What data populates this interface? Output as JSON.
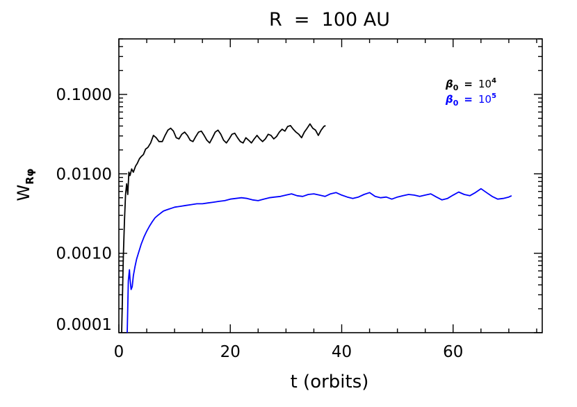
{
  "chart_data": {
    "type": "line",
    "title": "R  =  100 AU",
    "xlabel": "t (orbits)",
    "ylabel": "W",
    "ylabel_sub": "Rφ",
    "xlim": [
      0,
      76
    ],
    "ylim": [
      0.0001,
      0.5
    ],
    "yscale": "log",
    "xticks": [
      0,
      20,
      40,
      60
    ],
    "xtick_labels": [
      "0",
      "20",
      "40",
      "60"
    ],
    "yticks": [
      0.0001,
      0.001,
      0.01,
      0.1
    ],
    "ytick_labels": [
      "0.0001",
      "0.0010",
      "0.0100",
      "0.1000"
    ],
    "legend_position": "top-right",
    "series": [
      {
        "name": "β₀ = 10⁴",
        "legend_base": "β",
        "legend_sub": "0",
        "legend_eq": "=",
        "legend_val": "10",
        "legend_exp": "4",
        "color": "#000000",
        "x": [
          0.5,
          0.8,
          1.0,
          1.2,
          1.4,
          1.6,
          1.8,
          2.0,
          2.3,
          2.6,
          3.0,
          3.3,
          3.7,
          4.0,
          4.4,
          4.8,
          5.2,
          5.7,
          6.2,
          6.7,
          7.2,
          7.8,
          8.3,
          8.8,
          9.3,
          9.8,
          10.3,
          10.8,
          11.3,
          11.8,
          12.3,
          12.8,
          13.3,
          13.8,
          14.3,
          14.8,
          15.3,
          15.8,
          16.3,
          16.8,
          17.3,
          17.8,
          18.3,
          18.8,
          19.3,
          19.8,
          20.3,
          20.8,
          21.3,
          21.8,
          22.3,
          22.8,
          23.3,
          23.8,
          24.3,
          24.8,
          25.3,
          25.8,
          26.3,
          26.8,
          27.3,
          27.8,
          28.3,
          28.8,
          29.3,
          29.8,
          30.3,
          30.8,
          31.3,
          31.8,
          32.3,
          32.8,
          33.3,
          33.8,
          34.3,
          34.8,
          35.3,
          35.8,
          36.3,
          36.8,
          37.1
        ],
        "y": [
          0.0001,
          0.0009,
          0.0025,
          0.0055,
          0.0075,
          0.0055,
          0.0105,
          0.0095,
          0.0115,
          0.0105,
          0.0125,
          0.0135,
          0.0155,
          0.0165,
          0.0175,
          0.0205,
          0.0215,
          0.0245,
          0.0305,
          0.0285,
          0.0255,
          0.0255,
          0.0305,
          0.0355,
          0.0375,
          0.0345,
          0.0285,
          0.0275,
          0.0315,
          0.0335,
          0.0305,
          0.0265,
          0.0255,
          0.0295,
          0.0335,
          0.0345,
          0.0305,
          0.0265,
          0.0245,
          0.0285,
          0.0335,
          0.0355,
          0.0315,
          0.0265,
          0.0245,
          0.0275,
          0.0315,
          0.0325,
          0.0285,
          0.0255,
          0.0245,
          0.0285,
          0.0265,
          0.0245,
          0.0275,
          0.0305,
          0.0275,
          0.0255,
          0.0275,
          0.0315,
          0.0305,
          0.0275,
          0.0295,
          0.0335,
          0.0365,
          0.0345,
          0.0395,
          0.0405,
          0.0365,
          0.0335,
          0.0315,
          0.0285,
          0.0335,
          0.0375,
          0.0425,
          0.0375,
          0.0355,
          0.0305,
          0.0355,
          0.0395,
          0.0405
        ]
      },
      {
        "name": "β₀ = 10⁵",
        "legend_base": "β",
        "legend_sub": "0",
        "legend_eq": "=",
        "legend_val": "10",
        "legend_exp": "5",
        "color": "#0000ff",
        "x": [
          1.5,
          1.7,
          1.9,
          2.0,
          2.2,
          2.4,
          2.6,
          2.9,
          3.2,
          3.6,
          4.0,
          4.5,
          5.0,
          5.5,
          6.0,
          6.5,
          7.0,
          7.5,
          8.0,
          8.5,
          9.0,
          9.5,
          10.0,
          11.0,
          12.0,
          13.0,
          14.0,
          15.0,
          16.0,
          17.0,
          18.0,
          19.0,
          20.0,
          21.0,
          22.0,
          23.0,
          24.0,
          25.0,
          26.0,
          27.0,
          28.0,
          29.0,
          30.0,
          31.0,
          32.0,
          33.0,
          34.0,
          35.0,
          36.0,
          37.0,
          38.0,
          39.0,
          40.0,
          41.0,
          42.0,
          43.0,
          44.0,
          45.0,
          46.0,
          47.0,
          48.0,
          49.0,
          50.0,
          51.0,
          52.0,
          53.0,
          54.0,
          55.0,
          56.0,
          57.0,
          58.0,
          59.0,
          60.0,
          61.0,
          62.0,
          63.0,
          64.0,
          65.0,
          66.0,
          67.0,
          68.0,
          69.0,
          70.0,
          70.5
        ],
        "y": [
          0.0001,
          0.00045,
          0.00062,
          0.00048,
          0.00035,
          0.00038,
          0.00052,
          0.00068,
          0.00085,
          0.00105,
          0.0013,
          0.0016,
          0.0019,
          0.0022,
          0.0025,
          0.0028,
          0.003,
          0.0032,
          0.0034,
          0.0035,
          0.0036,
          0.0037,
          0.0038,
          0.0039,
          0.004,
          0.0041,
          0.0042,
          0.0042,
          0.0043,
          0.0044,
          0.0045,
          0.0046,
          0.0048,
          0.0049,
          0.005,
          0.0049,
          0.0047,
          0.0046,
          0.0048,
          0.005,
          0.0051,
          0.0052,
          0.0054,
          0.0056,
          0.0053,
          0.0052,
          0.0055,
          0.0056,
          0.0054,
          0.0052,
          0.0056,
          0.0058,
          0.0054,
          0.0051,
          0.0049,
          0.0051,
          0.0055,
          0.0058,
          0.0052,
          0.005,
          0.0051,
          0.0048,
          0.0051,
          0.0053,
          0.0055,
          0.0054,
          0.0052,
          0.0054,
          0.0056,
          0.0051,
          0.0047,
          0.0049,
          0.0054,
          0.0059,
          0.0055,
          0.0053,
          0.0058,
          0.0065,
          0.0058,
          0.0052,
          0.0048,
          0.0049,
          0.0051,
          0.0053
        ]
      }
    ]
  }
}
